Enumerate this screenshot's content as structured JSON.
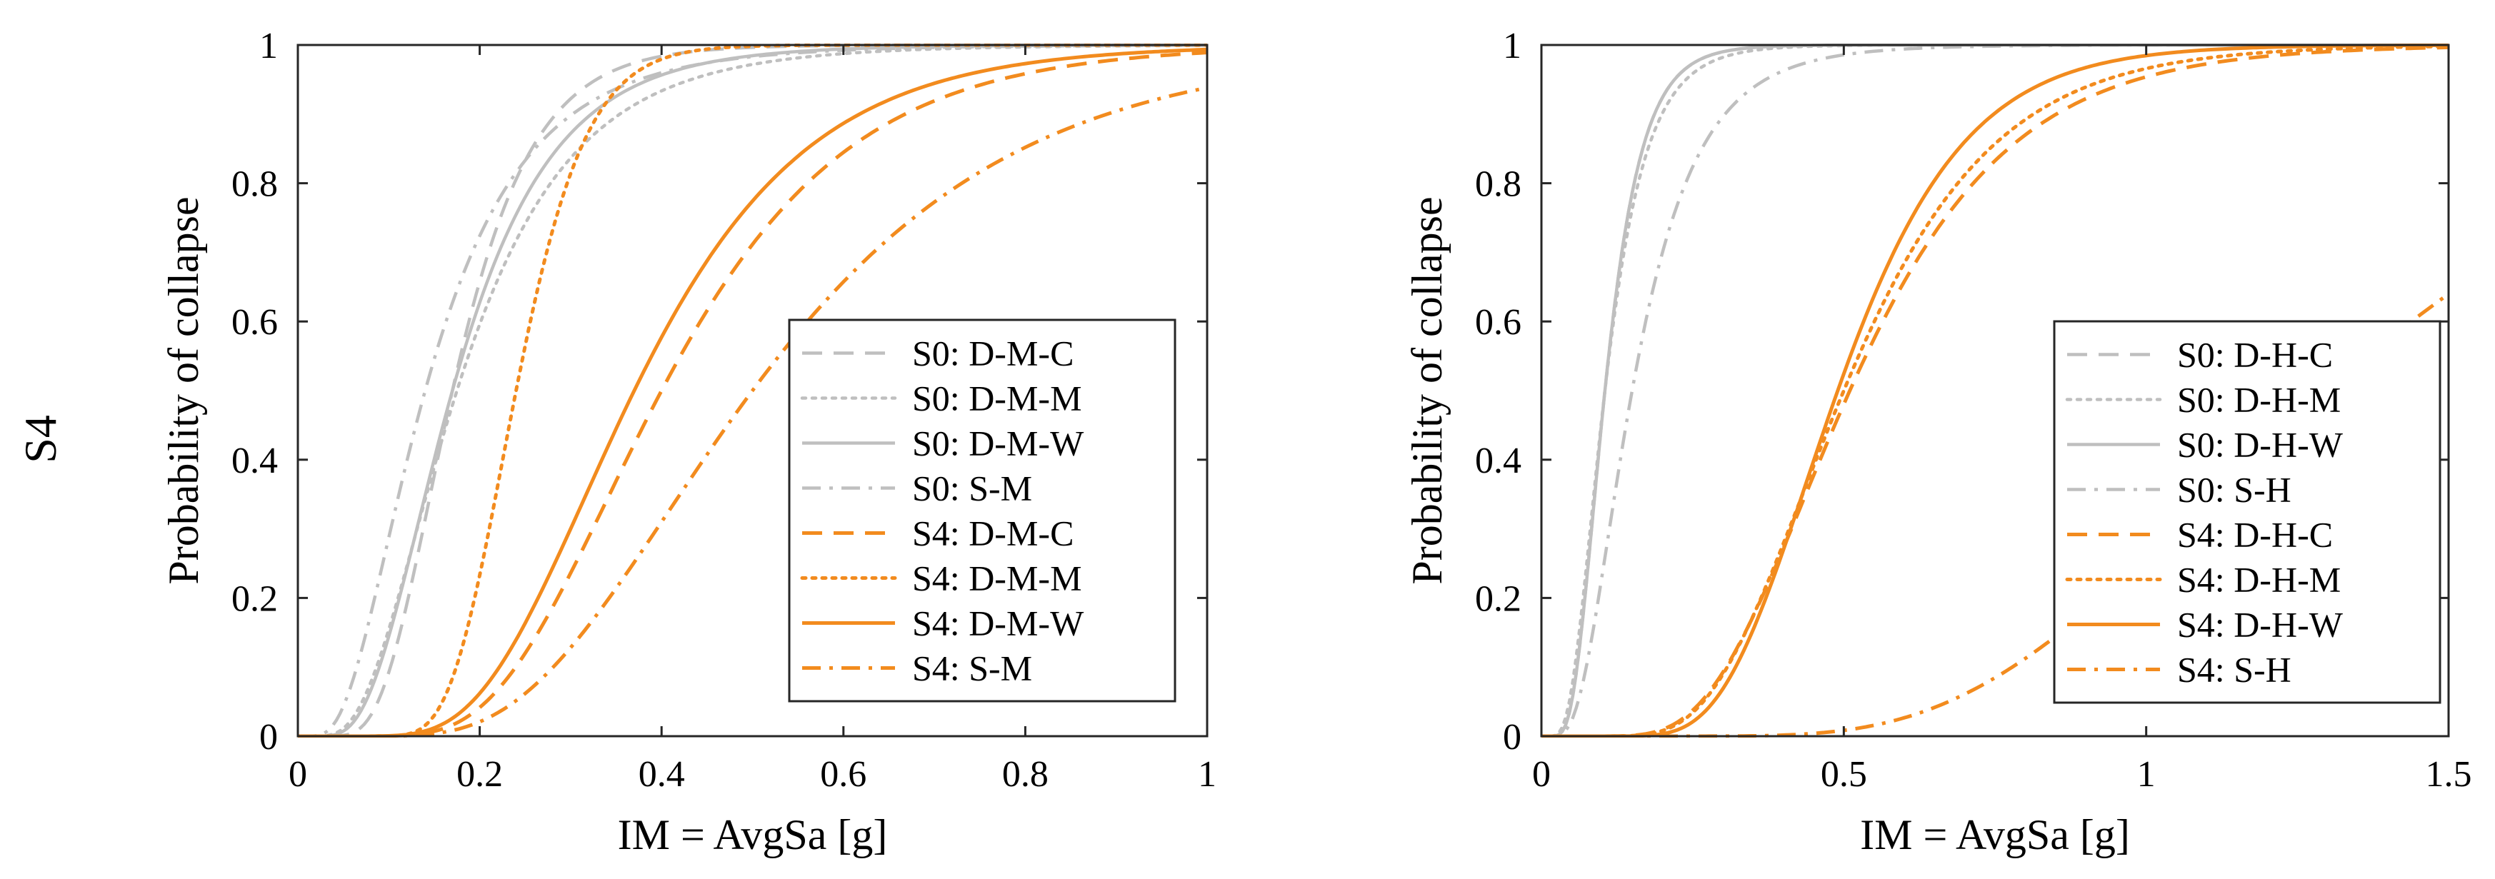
{
  "row_label": "S4",
  "colors": {
    "s0": "#bfbfbf",
    "s4": "#f28b1e"
  },
  "chart_data": [
    {
      "type": "line",
      "xlabel": "IM = AvgSa [g]",
      "ylabel": "Probability of collapse",
      "xlim": [
        0,
        1
      ],
      "ylim": [
        0,
        1
      ],
      "xticks": [
        0,
        0.2,
        0.4,
        0.6,
        0.8,
        1
      ],
      "xtick_labels": [
        "0",
        "0.2",
        "0.4",
        "0.6",
        "0.8",
        "1"
      ],
      "yticks": [
        0,
        0.2,
        0.4,
        0.6,
        0.8,
        1
      ],
      "ytick_labels": [
        "0",
        "0.2",
        "0.4",
        "0.6",
        "0.8",
        "1"
      ],
      "legend_position": "lower-right",
      "series": [
        {
          "name": "S0: D-M-C",
          "group": "S0",
          "style": "dashed",
          "median": 0.17,
          "beta": 0.4
        },
        {
          "name": "S0: D-M-M",
          "group": "S0",
          "style": "dotted",
          "median": 0.175,
          "beta": 0.55
        },
        {
          "name": "S0: D-M-W",
          "group": "S0",
          "style": "solid",
          "median": 0.17,
          "beta": 0.5
        },
        {
          "name": "S0: S-M",
          "group": "S0",
          "style": "dashdot",
          "median": 0.14,
          "beta": 0.6
        },
        {
          "name": "S4: D-M-C",
          "group": "S4",
          "style": "dashed",
          "median": 0.4,
          "beta": 0.4
        },
        {
          "name": "S4: D-M-M",
          "group": "S4",
          "style": "dotted",
          "median": 0.24,
          "beta": 0.25
        },
        {
          "name": "S4: D-M-W",
          "group": "S4",
          "style": "solid",
          "median": 0.37,
          "beta": 0.4
        },
        {
          "name": "S4: S-M",
          "group": "S4",
          "style": "dashdot",
          "median": 0.5,
          "beta": 0.45
        }
      ]
    },
    {
      "type": "line",
      "xlabel": "IM = AvgSa [g]",
      "ylabel": "Probability of collapse",
      "xlim": [
        0,
        1.5
      ],
      "ylim": [
        0,
        1
      ],
      "xticks": [
        0,
        0.5,
        1,
        1.5
      ],
      "xtick_labels": [
        "0",
        "0.5",
        "1",
        "1.5"
      ],
      "yticks": [
        0,
        0.2,
        0.4,
        0.6,
        0.8,
        1
      ],
      "ytick_labels": [
        "0",
        "0.2",
        "0.4",
        "0.6",
        "0.8",
        "1"
      ],
      "legend_position": "lower-right",
      "series": [
        {
          "name": "S0: D-H-C",
          "group": "S0",
          "style": "dashed",
          "median": 0.105,
          "beta": 0.45
        },
        {
          "name": "S0: D-H-M",
          "group": "S0",
          "style": "dotted",
          "median": 0.105,
          "beta": 0.5
        },
        {
          "name": "S0: D-H-W",
          "group": "S0",
          "style": "solid",
          "median": 0.105,
          "beta": 0.45
        },
        {
          "name": "S0: S-H",
          "group": "S0",
          "style": "dashdot",
          "median": 0.15,
          "beta": 0.55
        },
        {
          "name": "S4: D-H-C",
          "group": "S4",
          "style": "dashed",
          "median": 0.51,
          "beta": 0.4
        },
        {
          "name": "S4: D-H-M",
          "group": "S4",
          "style": "dotted",
          "median": 0.5,
          "beta": 0.38
        },
        {
          "name": "S4: D-H-W",
          "group": "S4",
          "style": "solid",
          "median": 0.49,
          "beta": 0.33
        },
        {
          "name": "S4: S-H",
          "group": "S4",
          "style": "dashdot",
          "median": 1.3,
          "beta": 0.4
        }
      ]
    }
  ]
}
